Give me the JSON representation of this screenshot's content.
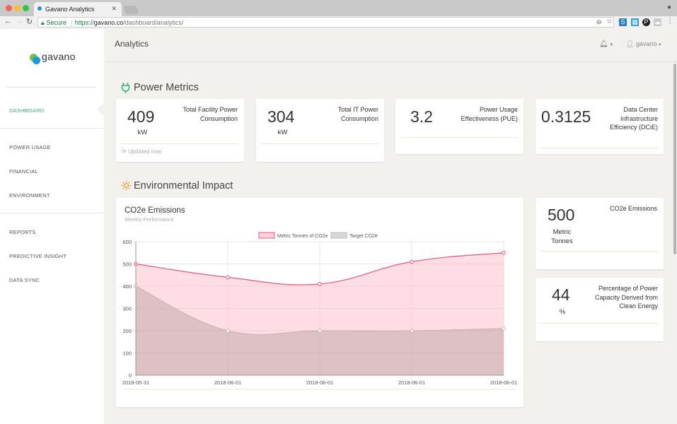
{
  "browser": {
    "tab_title": "Gavano Analytics",
    "secure_label": "Secure",
    "url_protocol": "https://",
    "url_domain": "gavano.co",
    "url_path": "/dashboard/analytics/"
  },
  "brand": {
    "name": "gavano"
  },
  "sidebar": {
    "items": [
      {
        "label": "DASHBOARD",
        "active": true
      },
      {
        "label": "POWER USAGE"
      },
      {
        "label": "FINANCIAL"
      },
      {
        "label": "ENVIRONMENT"
      },
      {
        "label": "REPORTS"
      },
      {
        "label": "PREDICTIVE INSIGHT"
      },
      {
        "label": "DATA SYNC"
      }
    ]
  },
  "header": {
    "title": "Analytics",
    "user": "gavano"
  },
  "power_metrics": {
    "title": "Power Metrics",
    "cards": [
      {
        "value": "409",
        "unit": "kW",
        "label": "Total Facility Power Consumption",
        "footer": "Updated now"
      },
      {
        "value": "304",
        "unit": "kW",
        "label": "Total IT Power Consumption"
      },
      {
        "value": "3.2",
        "label": "Power Usage Effectiveness (PUE)"
      },
      {
        "value": "0.3125",
        "label": "Data Center Infrastructure Efficiency (DCiE)"
      }
    ]
  },
  "environmental": {
    "title": "Environmental Impact",
    "chart_title": "CO2e Emissions",
    "chart_subtitle": "Weekly Performance",
    "side_cards": [
      {
        "value": "500",
        "unit": "Metric Tonnes",
        "label": "CO2e Emissions"
      },
      {
        "value": "44",
        "unit": "%",
        "label": "Percentage of Power Capacity Derived from Clean Energy"
      }
    ]
  },
  "colors": {
    "accent": "#3bb07a",
    "series1": "#e8577a",
    "series2": "#b8b8b8"
  },
  "chart_data": {
    "type": "area",
    "categories": [
      "2018-05-31",
      "2018-06-01",
      "2018-06-01",
      "2018-06-01",
      "2018-06-01"
    ],
    "series": [
      {
        "name": "Metric Tonnes of CO2e",
        "values": [
          500,
          440,
          410,
          510,
          550
        ]
      },
      {
        "name": "Target CO2e",
        "values": [
          400,
          200,
          200,
          200,
          210
        ]
      }
    ],
    "ylim": [
      0,
      600
    ],
    "yticks": [
      "0",
      "100",
      "200",
      "300",
      "400",
      "500",
      "600"
    ],
    "grid": true,
    "legend": "top-center"
  }
}
